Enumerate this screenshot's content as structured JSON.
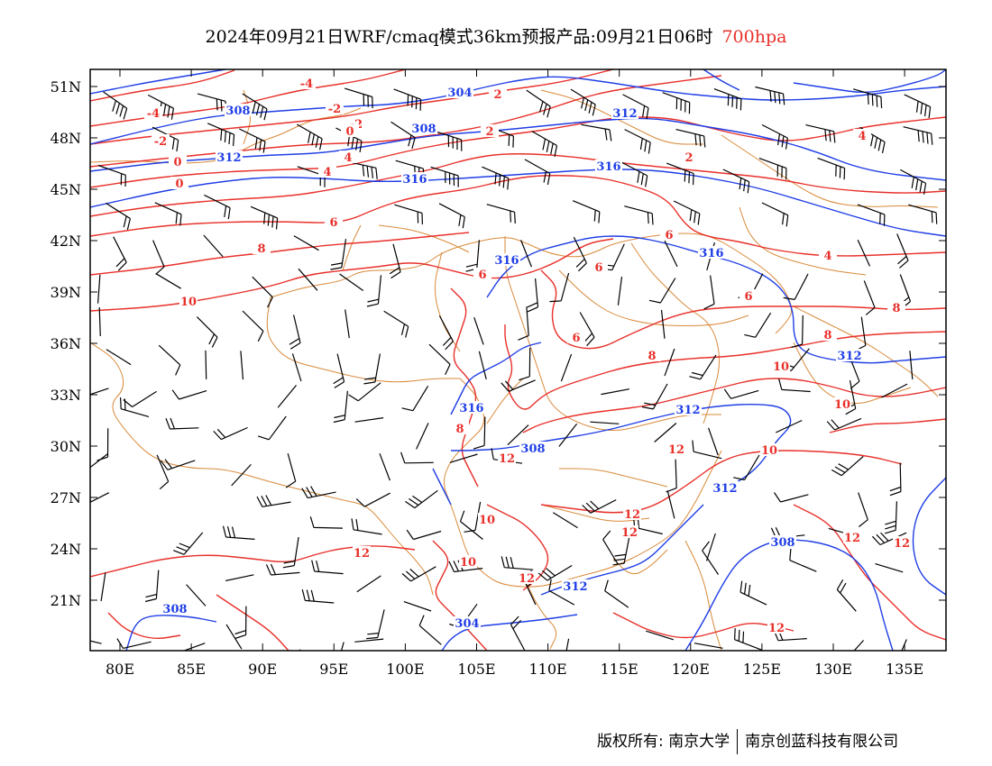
{
  "title": {
    "main": "2024年09月21日WRF/cmaq模式36km预报产品:09月21日06时",
    "level": "700hpa",
    "level_color": "#e8302a"
  },
  "map": {
    "lat_labels": [
      "51N",
      "48N",
      "45N",
      "42N",
      "39N",
      "36N",
      "33N",
      "30N",
      "27N",
      "24N",
      "21N"
    ],
    "lon_labels": [
      "80E",
      "85E",
      "90E",
      "95E",
      "100E",
      "105E",
      "110E",
      "115E",
      "120E",
      "125E",
      "130E",
      "135E"
    ],
    "height_contour_color": "#1f3ee6",
    "temperature_contour_color": "#e8302a",
    "border_color": "#d98a3a",
    "wind_barb_color": "#000000",
    "height_labels": [
      "304",
      "308",
      "308",
      "312",
      "312",
      "316",
      "316",
      "316",
      "316",
      "316",
      "312",
      "308",
      "312",
      "312",
      "312",
      "304",
      "308",
      "308"
    ],
    "temperature_labels": [
      "-4",
      "-4",
      "-2",
      "-2",
      "-2",
      "0",
      "0",
      "0",
      "2",
      "2",
      "2",
      "4",
      "4",
      "4",
      "4",
      "6",
      "6",
      "6",
      "6",
      "6",
      "6",
      "8",
      "8",
      "8",
      "8",
      "8",
      "10",
      "10",
      "10",
      "10",
      "10",
      "10",
      "12",
      "12",
      "12",
      "12",
      "12",
      "12",
      "12",
      "12",
      "12"
    ]
  },
  "copyright": {
    "left": "版权所有: 南京大学",
    "right": "南京创蓝科技有限公司"
  }
}
